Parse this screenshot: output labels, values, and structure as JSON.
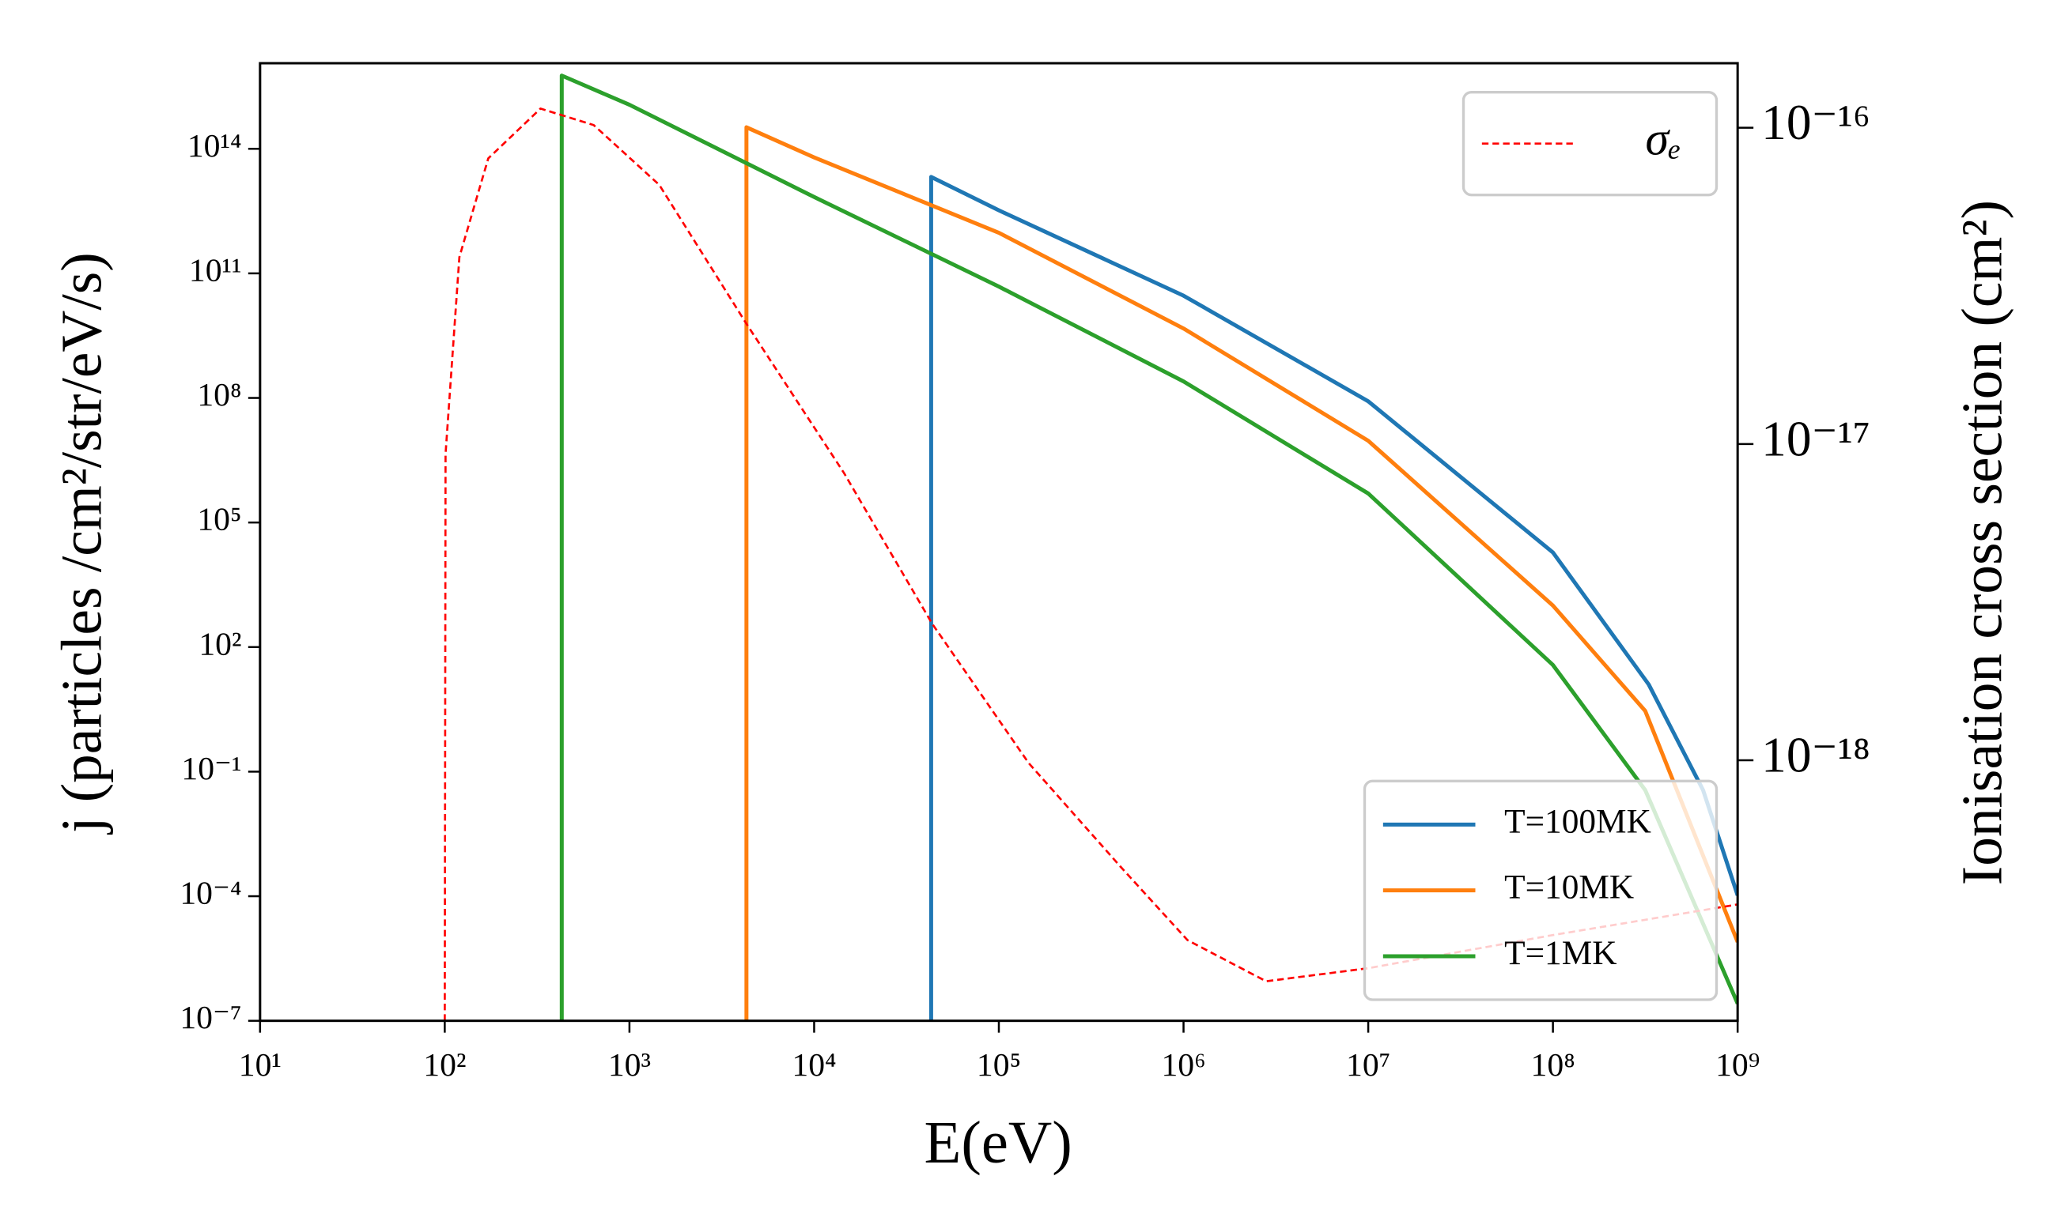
{
  "chart_data": {
    "type": "line",
    "xlabel": "E(eV)",
    "ylabel": "j (particles /cm²/str/eV/s)",
    "y2label": "Ionisation cross section (cm²)",
    "xscale": "log",
    "yscale": "log",
    "y2scale": "log",
    "xlim": [
      10,
      1000000000.0
    ],
    "ylim": [
      1e-07,
      1.15e+16
    ],
    "y2lim": [
      1.5e-19,
      1.6e-16
    ],
    "xticks": [
      {
        "value": 10,
        "label": "10¹"
      },
      {
        "value": 100,
        "label": "10²"
      },
      {
        "value": 1000,
        "label": "10³"
      },
      {
        "value": 10000,
        "label": "10⁴"
      },
      {
        "value": 100000,
        "label": "10⁵"
      },
      {
        "value": 1000000,
        "label": "10⁶"
      },
      {
        "value": 10000000,
        "label": "10⁷"
      },
      {
        "value": 100000000,
        "label": "10⁸"
      },
      {
        "value": 1000000000,
        "label": "10⁹"
      }
    ],
    "yticks": [
      {
        "value": 1e-07,
        "label": "10⁻⁷"
      },
      {
        "value": 0.0001,
        "label": "10⁻⁴"
      },
      {
        "value": 0.1,
        "label": "10⁻¹"
      },
      {
        "value": 100,
        "label": "10²"
      },
      {
        "value": 100000,
        "label": "10⁵"
      },
      {
        "value": 100000000.0,
        "label": "10⁸"
      },
      {
        "value": 100000000000.0,
        "label": "10¹¹"
      },
      {
        "value": 100000000000000.0,
        "label": "10¹⁴"
      }
    ],
    "y2ticks": [
      {
        "value": 1e-18,
        "label": "10⁻¹⁸"
      },
      {
        "value": 1e-17,
        "label": "10⁻¹⁷"
      },
      {
        "value": 1e-16,
        "label": "10⁻¹⁶"
      }
    ],
    "legend": "lower right",
    "legend2": "upper right",
    "series": [
      {
        "name": "T=100MK",
        "color": "#1f77b4",
        "x": [
          43000,
          43000,
          100000,
          1000000,
          10000000,
          100000000,
          330000000,
          650000000,
          1000000000
        ],
        "values": [
          1e-07,
          21000000000000.0,
          3300000000000.0,
          29000000000.0,
          83000000.0,
          19000.0,
          12.6,
          0.036,
          0.000105
        ]
      },
      {
        "name": "T=10MK",
        "color": "#ff7f0e",
        "x": [
          4300,
          4300,
          10000,
          100000,
          1000000,
          10000000,
          100000000,
          316000000,
          1000000000
        ],
        "values": [
          1e-07,
          330000000000000.0,
          62000000000000.0,
          950000000000.0,
          4700000000.0,
          9300000.0,
          1000,
          2.9,
          7.9e-06
        ]
      },
      {
        "name": "T=1MK",
        "color": "#2ca02c",
        "x": [
          430,
          430,
          1000,
          10000,
          100000,
          1000000,
          10000000,
          100000000,
          316000000,
          1000000000
        ],
        "values": [
          1e-07,
          5800000000000000.0,
          1150000000000000.0,
          6900000000000.0,
          48000000000.0,
          250000000.0,
          500000.0,
          37,
          0.036,
          2.6e-07
        ]
      },
      {
        "name": "σₑ",
        "color": "#ff0000",
        "axis": "y2",
        "dash": true,
        "x": [
          100,
          101,
          120,
          172,
          330,
          640,
          1450,
          4300,
          14500,
          43600,
          145000,
          457000,
          1050000,
          2800000,
          10000000,
          100000000,
          1000000000
        ],
        "values": [
          1.5e-19,
          9.3e-18,
          3.9e-17,
          8e-17,
          1.15e-16,
          1.02e-16,
          6.6e-17,
          2.4e-17,
          8.1e-18,
          2.7e-18,
          9.8e-19,
          4.6e-19,
          2.7e-19,
          2e-19,
          2.2e-19,
          2.8e-19,
          3.5e-19
        ]
      }
    ]
  }
}
